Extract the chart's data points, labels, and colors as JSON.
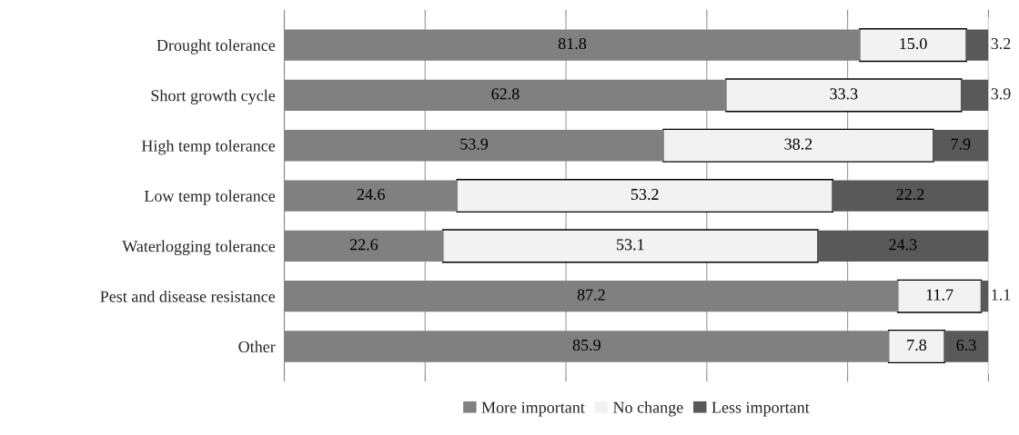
{
  "chart_data": {
    "type": "bar",
    "orientation": "horizontal",
    "stacked": true,
    "categories": [
      "Drought tolerance",
      "Short growth cycle",
      "High temp tolerance",
      "Low temp tolerance",
      "Waterlogging tolerance",
      "Pest and disease resistance",
      "Other"
    ],
    "series": [
      {
        "name": "More important",
        "color": "#808080",
        "values": [
          81.8,
          62.8,
          53.9,
          24.6,
          22.6,
          87.2,
          85.9
        ]
      },
      {
        "name": "No change",
        "color": "#f2f2f2",
        "values": [
          15.0,
          33.3,
          38.2,
          53.2,
          53.1,
          11.7,
          7.8
        ],
        "value_labels": [
          "15.0",
          "33.3",
          "38.2",
          "53.2",
          "53.1",
          "11.7",
          "7.8"
        ]
      },
      {
        "name": "Less important",
        "color": "#595959",
        "values": [
          3.2,
          3.9,
          7.9,
          22.2,
          24.3,
          1.1,
          6.3
        ]
      }
    ],
    "xlim": [
      0,
      100
    ],
    "xticks": [
      {
        "value": 0,
        "label": null
      },
      {
        "value": 20,
        "label": null
      },
      {
        "value": 40,
        "label": null
      },
      {
        "value": 60,
        "label": null
      },
      {
        "value": 80,
        "label": null
      },
      {
        "value": 100,
        "label": null
      }
    ],
    "tick_labels": "y",
    "grid": "x",
    "legend": "bottom",
    "data_labels": true
  }
}
